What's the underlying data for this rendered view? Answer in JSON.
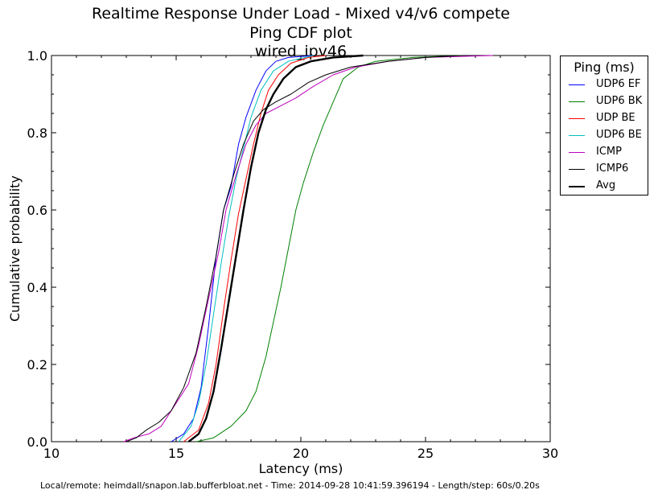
{
  "title_lines": [
    "Realtime Response Under Load - Mixed v4/v6 compete",
    "Ping CDF plot",
    "wired_ipv46"
  ],
  "footer": "Local/remote: heimdall/snapon.lab.bufferbloat.net - Time: 2014-09-28 10:41:59.396194 - Length/step: 60s/0.20s",
  "chart_data": {
    "type": "line",
    "title": "Realtime Response Under Load - Mixed v4/v6 compete",
    "subtitle": "Ping CDF plot",
    "xlabel": "Latency (ms)",
    "ylabel": "Cumulative probability",
    "xlim": [
      10,
      30
    ],
    "ylim": [
      0,
      1
    ],
    "xticks": [
      10,
      15,
      20,
      25,
      30
    ],
    "xtick_labels": [
      "10",
      "15",
      "20",
      "25",
      "30"
    ],
    "yticks": [
      0,
      0.2,
      0.4,
      0.6,
      0.8,
      1.0
    ],
    "ytick_labels": [
      "0.0",
      "0.2",
      "0.4",
      "0.6",
      "0.8",
      "1.0"
    ],
    "legend_title": "Ping (ms)",
    "legend_position": "outside-top-right",
    "series": [
      {
        "name": "UDP6 EF",
        "color": "#0000ff",
        "width": 1,
        "points": [
          [
            14.8,
            0
          ],
          [
            15.3,
            0.02
          ],
          [
            15.7,
            0.06
          ],
          [
            16.0,
            0.14
          ],
          [
            16.3,
            0.3
          ],
          [
            16.6,
            0.48
          ],
          [
            16.9,
            0.6
          ],
          [
            17.2,
            0.66
          ],
          [
            17.5,
            0.77
          ],
          [
            17.8,
            0.84
          ],
          [
            18.2,
            0.91
          ],
          [
            18.6,
            0.96
          ],
          [
            19.0,
            0.985
          ],
          [
            19.5,
            0.995
          ],
          [
            20.5,
            1.0
          ]
        ]
      },
      {
        "name": "UDP6 BK",
        "color": "#008000",
        "width": 1,
        "points": [
          [
            15.8,
            0
          ],
          [
            16.5,
            0.01
          ],
          [
            17.2,
            0.04
          ],
          [
            17.8,
            0.08
          ],
          [
            18.2,
            0.13
          ],
          [
            18.6,
            0.22
          ],
          [
            18.9,
            0.31
          ],
          [
            19.2,
            0.4
          ],
          [
            19.5,
            0.5
          ],
          [
            19.8,
            0.6
          ],
          [
            20.1,
            0.67
          ],
          [
            20.5,
            0.75
          ],
          [
            20.9,
            0.82
          ],
          [
            21.3,
            0.88
          ],
          [
            21.7,
            0.94
          ],
          [
            22.3,
            0.97
          ],
          [
            23.0,
            0.985
          ],
          [
            24.5,
            0.995
          ],
          [
            26.5,
            1.0
          ]
        ]
      },
      {
        "name": "UDP BE",
        "color": "#ff0000",
        "width": 1,
        "points": [
          [
            15.3,
            0
          ],
          [
            15.9,
            0.03
          ],
          [
            16.3,
            0.1
          ],
          [
            16.6,
            0.2
          ],
          [
            16.9,
            0.34
          ],
          [
            17.2,
            0.47
          ],
          [
            17.5,
            0.59
          ],
          [
            17.8,
            0.68
          ],
          [
            18.1,
            0.77
          ],
          [
            18.4,
            0.85
          ],
          [
            18.7,
            0.91
          ],
          [
            19.1,
            0.95
          ],
          [
            19.6,
            0.98
          ],
          [
            20.3,
            0.995
          ],
          [
            21.0,
            1.0
          ]
        ]
      },
      {
        "name": "UDP6 BE",
        "color": "#00bfbf",
        "width": 1,
        "points": [
          [
            15.1,
            0
          ],
          [
            15.6,
            0.04
          ],
          [
            15.9,
            0.1
          ],
          [
            16.2,
            0.2
          ],
          [
            16.5,
            0.33
          ],
          [
            16.8,
            0.46
          ],
          [
            17.1,
            0.58
          ],
          [
            17.4,
            0.68
          ],
          [
            17.7,
            0.76
          ],
          [
            18.0,
            0.84
          ],
          [
            18.4,
            0.91
          ],
          [
            18.9,
            0.96
          ],
          [
            19.5,
            0.985
          ],
          [
            20.5,
            1.0
          ]
        ]
      },
      {
        "name": "ICMP",
        "color": "#bf00bf",
        "width": 1,
        "points": [
          [
            12.9,
            0
          ],
          [
            13.3,
            0.01
          ],
          [
            13.9,
            0.02
          ],
          [
            14.4,
            0.04
          ],
          [
            14.9,
            0.09
          ],
          [
            15.5,
            0.15
          ],
          [
            15.9,
            0.25
          ],
          [
            16.3,
            0.37
          ],
          [
            16.7,
            0.49
          ],
          [
            17.0,
            0.6
          ],
          [
            17.4,
            0.69
          ],
          [
            17.8,
            0.77
          ],
          [
            18.2,
            0.82
          ],
          [
            18.6,
            0.85
          ],
          [
            19.2,
            0.87
          ],
          [
            19.8,
            0.89
          ],
          [
            20.5,
            0.92
          ],
          [
            21.3,
            0.95
          ],
          [
            22.2,
            0.97
          ],
          [
            23.5,
            0.985
          ],
          [
            25.0,
            0.995
          ],
          [
            27.7,
            1.0
          ]
        ]
      },
      {
        "name": "ICMP6",
        "color": "#000000",
        "width": 1,
        "points": [
          [
            13.0,
            0
          ],
          [
            13.4,
            0.01
          ],
          [
            13.8,
            0.03
          ],
          [
            14.3,
            0.05
          ],
          [
            14.8,
            0.08
          ],
          [
            15.3,
            0.14
          ],
          [
            15.8,
            0.23
          ],
          [
            16.2,
            0.35
          ],
          [
            16.6,
            0.48
          ],
          [
            16.9,
            0.6
          ],
          [
            17.3,
            0.69
          ],
          [
            17.7,
            0.77
          ],
          [
            18.1,
            0.83
          ],
          [
            18.5,
            0.86
          ],
          [
            19.0,
            0.88
          ],
          [
            19.6,
            0.9
          ],
          [
            20.3,
            0.93
          ],
          [
            21.0,
            0.95
          ],
          [
            22.0,
            0.97
          ],
          [
            23.5,
            0.985
          ],
          [
            25.0,
            0.995
          ],
          [
            26.5,
            1.0
          ]
        ]
      },
      {
        "name": "Avg",
        "color": "#000000",
        "width": 2.4,
        "points": [
          [
            15.5,
            0
          ],
          [
            15.9,
            0.02
          ],
          [
            16.2,
            0.06
          ],
          [
            16.5,
            0.13
          ],
          [
            16.8,
            0.24
          ],
          [
            17.1,
            0.36
          ],
          [
            17.4,
            0.48
          ],
          [
            17.7,
            0.6
          ],
          [
            18.0,
            0.71
          ],
          [
            18.3,
            0.8
          ],
          [
            18.6,
            0.86
          ],
          [
            18.9,
            0.9
          ],
          [
            19.3,
            0.94
          ],
          [
            19.8,
            0.97
          ],
          [
            20.4,
            0.985
          ],
          [
            21.3,
            0.995
          ],
          [
            22.5,
            1.0
          ]
        ]
      }
    ]
  }
}
